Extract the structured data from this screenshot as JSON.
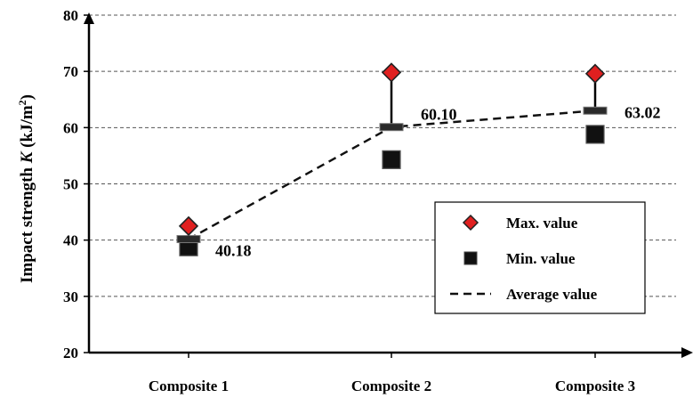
{
  "chart_data": {
    "type": "scatter",
    "categories": [
      "Composite 1",
      "Composite 2",
      "Composite 3"
    ],
    "series": [
      {
        "name": "Max. value",
        "values": [
          42.5,
          69.8,
          69.6
        ]
      },
      {
        "name": "Min. value",
        "values": [
          38.8,
          54.3,
          58.8
        ]
      },
      {
        "name": "Average value",
        "values": [
          40.18,
          60.1,
          63.02
        ]
      }
    ],
    "data_labels": [
      "40.18",
      "60.10",
      "63.02"
    ],
    "ylabel_prefix": "Impact strength ",
    "ylabel_var": "K",
    "ylabel_unit": "  (kJ/m",
    "ylabel_sup": "2",
    "ylabel_close": ")",
    "xlabel": "",
    "ylim": [
      20,
      80
    ],
    "yticks": [
      20,
      30,
      40,
      50,
      60,
      70,
      80
    ],
    "grid": "horizontal dashed",
    "legend_position": "bottom-right",
    "colors": {
      "max_marker": "#e02020",
      "min_marker": "#111111",
      "average_line": "#111111"
    }
  }
}
